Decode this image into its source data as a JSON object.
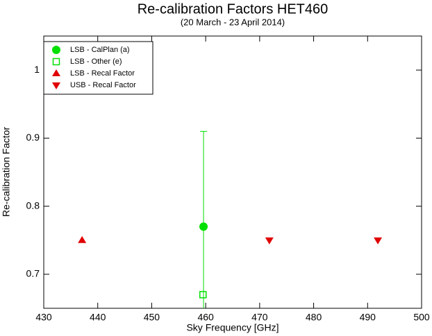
{
  "chart_data": {
    "type": "scatter",
    "title": "Re-calibration Factors HET460",
    "subtitle": "(20 March - 23 April 2014)",
    "x_label": "Sky Frequency [GHz]",
    "y_label": "Re-calibration Factor",
    "xlim": [
      430,
      500
    ],
    "xticks": [
      430,
      440,
      450,
      460,
      470,
      480,
      490,
      500
    ],
    "ylim": [
      0.65,
      1.05
    ],
    "yticks": [
      0.7,
      0.8,
      0.9,
      1
    ],
    "legend": "upper-left",
    "series": [
      {
        "name": "LSB - CalPlan (a)",
        "color": "#00e000",
        "marker": "circle",
        "x": [
          459.6
        ],
        "values": [
          0.77
        ],
        "errors": [
          0.14
        ]
      },
      {
        "name": "LSB - Other (e)",
        "color": "#00e000",
        "marker": "open-square",
        "x": [
          459.5
        ],
        "values": [
          0.67
        ]
      },
      {
        "name": "LSB - Recal Factor",
        "color": "#e00000",
        "marker": "triangle-up",
        "x": [
          437.1
        ],
        "values": [
          0.75
        ]
      },
      {
        "name": "USB - Recal Factor",
        "color": "#e00000",
        "marker": "triangle-down",
        "x": [
          471.8,
          491.9
        ],
        "values": [
          0.75,
          0.75
        ]
      }
    ]
  }
}
